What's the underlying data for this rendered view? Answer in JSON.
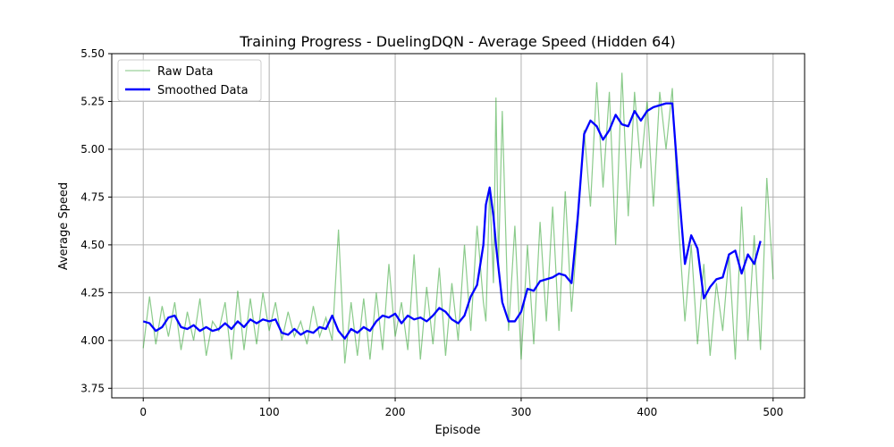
{
  "chart_data": {
    "type": "line",
    "title": "Training Progress - DuelingDQN - Average Speed (Hidden 64)",
    "xlabel": "Episode",
    "ylabel": "Average Speed",
    "xlim": [
      -25,
      525
    ],
    "ylim": [
      3.7,
      5.5
    ],
    "xticks": [
      0,
      100,
      200,
      300,
      400,
      500
    ],
    "yticks": [
      3.75,
      4.0,
      4.25,
      4.5,
      4.75,
      5.0,
      5.25,
      5.5
    ],
    "xtick_labels": [
      "0",
      "100",
      "200",
      "300",
      "400",
      "500"
    ],
    "ytick_labels": [
      "3.75",
      "4.00",
      "4.25",
      "4.50",
      "4.75",
      "5.00",
      "5.25",
      "5.50"
    ],
    "grid": true,
    "legend_position": "top-left",
    "colors": {
      "raw": "#2ca02c",
      "smoothed": "#0000ff"
    },
    "series": [
      {
        "name": "Raw Data",
        "x": [
          0,
          5,
          10,
          15,
          20,
          25,
          30,
          35,
          40,
          45,
          50,
          55,
          60,
          65,
          70,
          75,
          80,
          85,
          90,
          95,
          100,
          105,
          110,
          115,
          120,
          125,
          130,
          135,
          140,
          145,
          150,
          155,
          160,
          165,
          170,
          175,
          180,
          185,
          190,
          195,
          200,
          205,
          210,
          215,
          220,
          225,
          230,
          235,
          240,
          245,
          250,
          255,
          260,
          265,
          270,
          272,
          275,
          278,
          280,
          282,
          285,
          290,
          295,
          300,
          305,
          310,
          315,
          320,
          325,
          330,
          335,
          340,
          345,
          350,
          355,
          360,
          365,
          370,
          375,
          380,
          385,
          390,
          395,
          400,
          405,
          410,
          415,
          420,
          425,
          430,
          435,
          440,
          445,
          450,
          455,
          460,
          465,
          470,
          475,
          480,
          485,
          490,
          495,
          500
        ],
        "y": [
          3.96,
          4.23,
          3.98,
          4.18,
          4.02,
          4.2,
          3.95,
          4.15,
          4.0,
          4.22,
          3.92,
          4.1,
          4.05,
          4.2,
          3.9,
          4.26,
          3.95,
          4.22,
          3.98,
          4.25,
          4.05,
          4.2,
          4.0,
          4.15,
          4.02,
          4.1,
          3.98,
          4.18,
          4.02,
          4.12,
          4.0,
          4.58,
          3.88,
          4.2,
          3.92,
          4.22,
          3.9,
          4.25,
          3.95,
          4.4,
          4.02,
          4.2,
          3.95,
          4.45,
          3.9,
          4.28,
          3.98,
          4.38,
          3.92,
          4.3,
          4.0,
          4.5,
          4.05,
          4.6,
          4.2,
          4.1,
          4.8,
          4.3,
          5.27,
          4.4,
          5.2,
          4.05,
          4.6,
          3.9,
          4.5,
          3.98,
          4.62,
          4.1,
          4.7,
          4.05,
          4.78,
          4.15,
          4.6,
          5.1,
          4.7,
          5.35,
          4.8,
          5.3,
          4.5,
          5.4,
          4.65,
          5.3,
          4.9,
          5.25,
          4.7,
          5.3,
          5.0,
          5.32,
          4.6,
          4.1,
          4.5,
          3.98,
          4.4,
          3.92,
          4.3,
          4.05,
          4.45,
          3.9,
          4.7,
          4.0,
          4.55,
          3.95,
          4.85,
          4.32
        ]
      },
      {
        "name": "Smoothed Data",
        "x": [
          0,
          5,
          10,
          15,
          20,
          25,
          30,
          35,
          40,
          45,
          50,
          55,
          60,
          65,
          70,
          75,
          80,
          85,
          90,
          95,
          100,
          105,
          110,
          115,
          120,
          125,
          130,
          135,
          140,
          145,
          150,
          155,
          160,
          165,
          170,
          175,
          180,
          185,
          190,
          195,
          200,
          205,
          210,
          215,
          220,
          225,
          230,
          235,
          240,
          245,
          250,
          255,
          260,
          265,
          270,
          272,
          275,
          278,
          280,
          282,
          285,
          290,
          295,
          300,
          305,
          310,
          315,
          320,
          325,
          330,
          335,
          340,
          345,
          350,
          355,
          360,
          365,
          370,
          375,
          380,
          385,
          390,
          395,
          400,
          405,
          410,
          415,
          420,
          425,
          430,
          435,
          440,
          445,
          450,
          455,
          460,
          465,
          470,
          475,
          480,
          485,
          490
        ],
        "y": [
          4.1,
          4.09,
          4.05,
          4.07,
          4.12,
          4.13,
          4.07,
          4.06,
          4.08,
          4.05,
          4.07,
          4.05,
          4.06,
          4.09,
          4.06,
          4.1,
          4.07,
          4.11,
          4.09,
          4.11,
          4.1,
          4.11,
          4.04,
          4.03,
          4.06,
          4.03,
          4.05,
          4.04,
          4.07,
          4.06,
          4.13,
          4.05,
          4.01,
          4.06,
          4.04,
          4.07,
          4.05,
          4.1,
          4.13,
          4.12,
          4.14,
          4.09,
          4.13,
          4.11,
          4.12,
          4.1,
          4.13,
          4.17,
          4.15,
          4.11,
          4.09,
          4.13,
          4.23,
          4.29,
          4.5,
          4.71,
          4.8,
          4.65,
          4.5,
          4.38,
          4.2,
          4.1,
          4.1,
          4.15,
          4.27,
          4.26,
          4.31,
          4.32,
          4.33,
          4.35,
          4.34,
          4.3,
          4.65,
          5.08,
          5.15,
          5.12,
          5.05,
          5.1,
          5.18,
          5.13,
          5.12,
          5.2,
          5.15,
          5.2,
          5.22,
          5.23,
          5.24,
          5.24,
          4.8,
          4.4,
          4.55,
          4.48,
          4.22,
          4.28,
          4.32,
          4.33,
          4.45,
          4.47,
          4.35,
          4.45,
          4.4,
          4.52
        ]
      }
    ]
  }
}
